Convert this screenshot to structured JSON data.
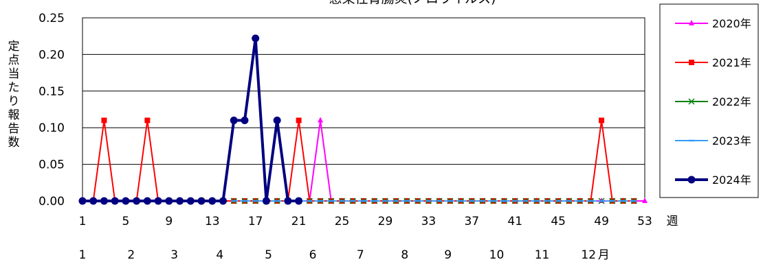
{
  "chart_data": {
    "type": "line",
    "title": "感染性胃腸炎(ノロウイルス)",
    "ylabel": "定点当たり報告数",
    "xlabel": "週",
    "month_label": "月",
    "ylim": [
      0,
      0.25
    ],
    "y_ticks": [
      "0.00",
      "0.05",
      "0.10",
      "0.15",
      "0.20",
      "0.25"
    ],
    "x_range": [
      1,
      53
    ],
    "x_ticks": [
      "1",
      "5",
      "9",
      "13",
      "17",
      "21",
      "25",
      "29",
      "33",
      "37",
      "41",
      "45",
      "49",
      "53"
    ],
    "month_ticks": [
      {
        "label": "1",
        "week": 1
      },
      {
        "label": "2",
        "week": 5.5
      },
      {
        "label": "3",
        "week": 9.5
      },
      {
        "label": "4",
        "week": 13.7
      },
      {
        "label": "5",
        "week": 18.2
      },
      {
        "label": "6",
        "week": 22.3
      },
      {
        "label": "7",
        "week": 26.7
      },
      {
        "label": "8",
        "week": 30.8
      },
      {
        "label": "9",
        "week": 34.8
      },
      {
        "label": "10",
        "week": 39.3
      },
      {
        "label": "11",
        "week": 43.5
      },
      {
        "label": "12",
        "week": 47.8
      }
    ],
    "grid": true,
    "legend_position": "right",
    "series": [
      {
        "name": "2020年",
        "color": "#ff00ff",
        "marker": "triangle",
        "x": [
          15,
          16,
          17,
          18,
          19,
          20,
          21,
          22,
          23,
          24,
          25,
          26,
          27,
          28,
          29,
          30,
          31,
          32,
          33,
          34,
          35,
          36,
          37,
          38,
          39,
          40,
          41,
          42,
          43,
          44,
          45,
          46,
          47,
          48,
          49,
          50,
          51,
          52,
          53
        ],
        "values": [
          0,
          0,
          0,
          0,
          0,
          0,
          0,
          0,
          0.11,
          0,
          0,
          0,
          0,
          0,
          0,
          0,
          0,
          0,
          0,
          0,
          0,
          0,
          0,
          0,
          0,
          0,
          0,
          0,
          0,
          0,
          0,
          0,
          0,
          0,
          0,
          0,
          0,
          0,
          0
        ]
      },
      {
        "name": "2021年",
        "color": "#ff0000",
        "marker": "square",
        "x": [
          1,
          2,
          3,
          4,
          5,
          6,
          7,
          8,
          9,
          10,
          11,
          12,
          13,
          14,
          15,
          16,
          17,
          18,
          19,
          20,
          21,
          22,
          23,
          24,
          25,
          26,
          27,
          28,
          29,
          30,
          31,
          32,
          33,
          34,
          35,
          36,
          37,
          38,
          39,
          40,
          41,
          42,
          43,
          44,
          45,
          46,
          47,
          48,
          49,
          50,
          51,
          52
        ],
        "values": [
          0,
          0,
          0.11,
          0,
          0,
          0,
          0.11,
          0,
          0,
          0,
          0,
          0,
          0,
          0,
          0,
          0,
          0,
          0,
          0,
          0,
          0.11,
          0,
          0,
          0,
          0,
          0,
          0,
          0,
          0,
          0,
          0,
          0,
          0,
          0,
          0,
          0,
          0,
          0,
          0,
          0,
          0,
          0,
          0,
          0,
          0,
          0,
          0,
          0,
          0.11,
          0,
          0,
          0
        ]
      },
      {
        "name": "2022年",
        "color": "#008000",
        "marker": "x",
        "x": [
          15,
          16,
          17,
          18,
          19,
          20,
          21,
          22,
          23,
          24,
          25,
          26,
          27,
          28,
          29,
          30,
          31,
          32,
          33,
          34,
          35,
          36,
          37,
          38,
          39,
          40,
          41,
          42,
          43,
          44,
          45,
          46,
          47,
          48,
          49,
          50,
          51,
          52
        ],
        "values": [
          0,
          0,
          0,
          0,
          0,
          0,
          0,
          0,
          0,
          0,
          0,
          0,
          0,
          0,
          0,
          0,
          0,
          0,
          0,
          0,
          0,
          0,
          0,
          0,
          0,
          0,
          0,
          0,
          0,
          0,
          0,
          0,
          0,
          0,
          0,
          0,
          0,
          0
        ]
      },
      {
        "name": "2023年",
        "color": "#3399ff",
        "marker": "dash",
        "x": [
          15,
          16,
          17,
          18,
          19,
          20,
          21,
          22,
          23,
          24,
          25,
          26,
          27,
          28,
          29,
          30,
          31,
          32,
          33,
          34,
          35,
          36,
          37,
          38,
          39,
          40,
          41,
          42,
          43,
          44,
          45,
          46,
          47,
          48,
          49,
          50,
          51,
          52
        ],
        "values": [
          0,
          0,
          0,
          0,
          0,
          0,
          0,
          0,
          0,
          0,
          0,
          0,
          0,
          0,
          0,
          0,
          0,
          0,
          0,
          0,
          0,
          0,
          0,
          0,
          0,
          0,
          0,
          0,
          0,
          0,
          0,
          0,
          0,
          0,
          0,
          0,
          0,
          0
        ]
      },
      {
        "name": "2024年",
        "color": "#000080",
        "marker": "circle",
        "x": [
          1,
          2,
          3,
          4,
          5,
          6,
          7,
          8,
          9,
          10,
          11,
          12,
          13,
          14,
          15,
          16,
          17,
          18,
          19,
          20,
          21
        ],
        "values": [
          0,
          0,
          0,
          0,
          0,
          0,
          0,
          0,
          0,
          0,
          0,
          0,
          0,
          0,
          0.11,
          0.11,
          0.222,
          0,
          0.11,
          0,
          0
        ]
      }
    ]
  }
}
